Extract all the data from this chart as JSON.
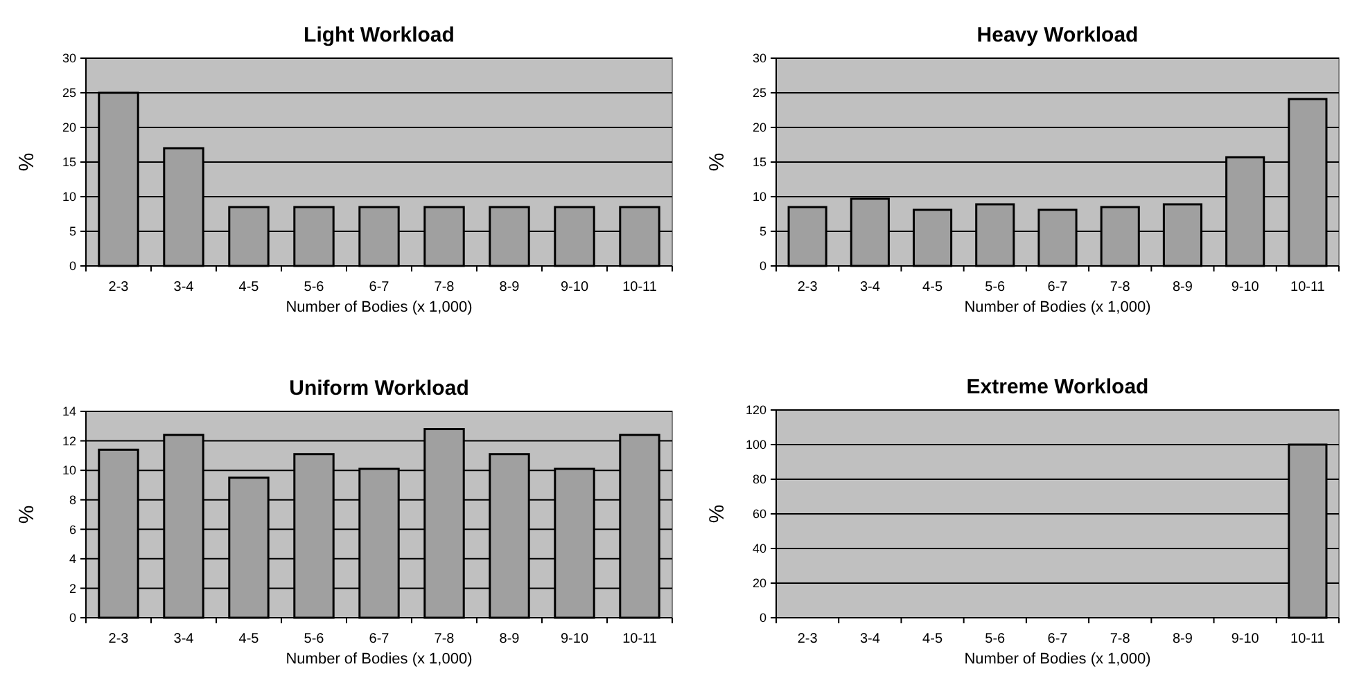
{
  "chart_data": [
    {
      "type": "bar",
      "title": "Light Workload",
      "xlabel": "Number of Bodies (x 1,000)",
      "ylabel": "%",
      "categories": [
        "2-3",
        "3-4",
        "4-5",
        "5-6",
        "6-7",
        "7-8",
        "8-9",
        "9-10",
        "10-11"
      ],
      "values": [
        25,
        17,
        8.5,
        8.5,
        8.5,
        8.5,
        8.5,
        8.5,
        8.5
      ],
      "color": "#a0a0a0",
      "ylim": [
        0,
        30
      ],
      "yticks": [
        0,
        5,
        10,
        15,
        20,
        25,
        30
      ],
      "grid": "y"
    },
    {
      "type": "bar",
      "title": "Heavy Workload",
      "xlabel": "Number of Bodies (x 1,000)",
      "ylabel": "%",
      "categories": [
        "2-3",
        "3-4",
        "4-5",
        "5-6",
        "6-7",
        "7-8",
        "8-9",
        "9-10",
        "10-11"
      ],
      "values": [
        8.5,
        9.7,
        8.1,
        8.9,
        8.1,
        8.5,
        8.9,
        15.7,
        24.1
      ],
      "color": "#a0a0a0",
      "ylim": [
        0,
        30
      ],
      "yticks": [
        0,
        5,
        10,
        15,
        20,
        25,
        30
      ],
      "grid": "y"
    },
    {
      "type": "bar",
      "title": "Uniform Workload",
      "xlabel": "Number of Bodies (x 1,000)",
      "ylabel": "%",
      "categories": [
        "2-3",
        "3-4",
        "4-5",
        "5-6",
        "6-7",
        "7-8",
        "8-9",
        "9-10",
        "10-11"
      ],
      "values": [
        11.4,
        12.4,
        9.5,
        11.1,
        10.1,
        12.8,
        11.1,
        10.1,
        12.4
      ],
      "color": "#a0a0a0",
      "ylim": [
        0,
        14
      ],
      "yticks": [
        0,
        2,
        4,
        6,
        8,
        10,
        12,
        14
      ],
      "grid": "y"
    },
    {
      "type": "bar",
      "title": "Extreme Workload",
      "xlabel": "Number of Bodies (x 1,000)",
      "ylabel": "%",
      "categories": [
        "2-3",
        "3-4",
        "4-5",
        "5-6",
        "6-7",
        "7-8",
        "8-9",
        "9-10",
        "10-11"
      ],
      "values": [
        0,
        0,
        0,
        0,
        0,
        0,
        0,
        0,
        100
      ],
      "color": "#a0a0a0",
      "ylim": [
        0,
        120
      ],
      "yticks": [
        0,
        20,
        40,
        60,
        80,
        100,
        120
      ],
      "grid": "y"
    }
  ]
}
